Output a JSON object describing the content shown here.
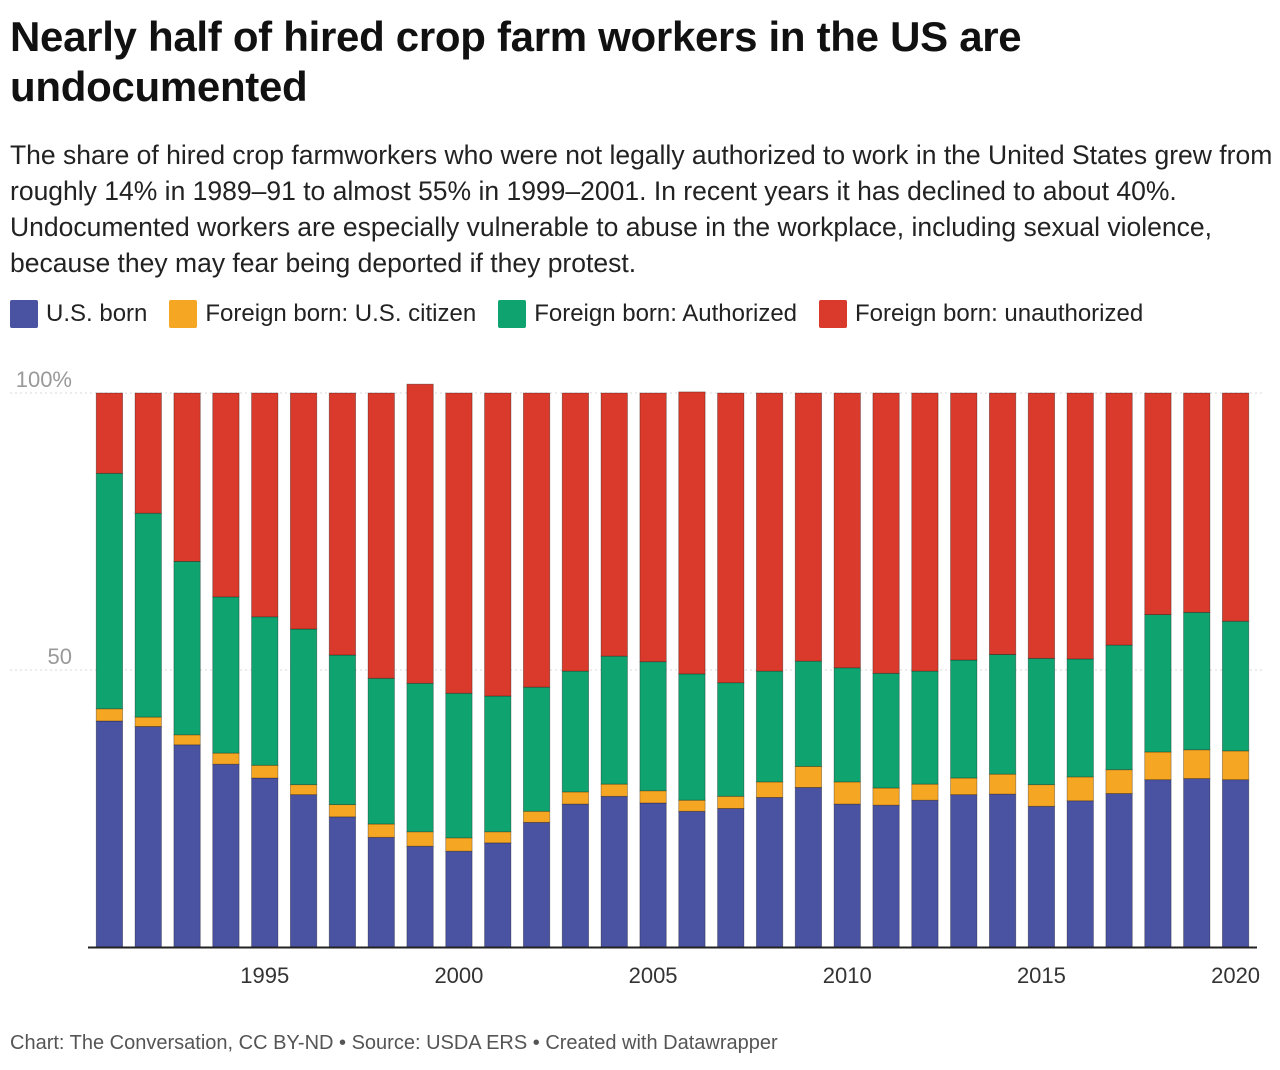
{
  "title": "Nearly half of hired crop farm workers in the US are undocumented",
  "subtitle": "The share of hired crop farmworkers who were not legally authorized to work in the United States grew from roughly 14% in 1989–91 to almost 55% in 1999–2001. In recent years it has declined to about 40%. Undocumented workers are especially vulnerable to abuse in the workplace, including sexual violence, because they may fear being deported if they protest.",
  "footer": "Chart: The Conversation, CC BY-ND • Source: USDA ERS • Created with Datawrapper",
  "colors": {
    "us_born": "#4a52a2",
    "fb_citizen": "#f5a623",
    "fb_authorized": "#0fa370",
    "fb_unauthorized": "#d93a2b"
  },
  "chart_data": {
    "type": "bar",
    "stacked": true,
    "title": "Nearly half of hired crop farm workers in the US are undocumented",
    "x": [
      1991,
      1992,
      1993,
      1994,
      1995,
      1996,
      1997,
      1998,
      1999,
      2000,
      2001,
      2002,
      2003,
      2004,
      2005,
      2006,
      2007,
      2008,
      2009,
      2010,
      2011,
      2012,
      2013,
      2014,
      2015,
      2016,
      2017,
      2018,
      2019,
      2020
    ],
    "x_tick_labels": [
      "1995",
      "2000",
      "2005",
      "2010",
      "2015",
      "2020"
    ],
    "x_ticks": [
      1995,
      2000,
      2005,
      2010,
      2015,
      2020
    ],
    "y_tick_labels": [
      "100%",
      "50"
    ],
    "y_ticks": [
      100,
      50
    ],
    "ylim": [
      0,
      100
    ],
    "grid": true,
    "legend_position": "top",
    "series": [
      {
        "name": "U.S. born",
        "color_key": "us_born",
        "values": [
          40.8,
          39.8,
          36.5,
          33.0,
          30.5,
          27.5,
          23.5,
          19.8,
          18.2,
          17.3,
          18.8,
          22.5,
          25.8,
          27.2,
          26.0,
          24.5,
          25.0,
          27.0,
          28.8,
          25.8,
          25.6,
          26.5,
          27.5,
          27.6,
          25.4,
          26.4,
          27.7,
          30.2,
          30.4,
          30.2
        ]
      },
      {
        "name": "Foreign born: U.S. citizen",
        "color_key": "fb_citizen",
        "values": [
          2.2,
          1.7,
          1.8,
          2.0,
          2.3,
          1.8,
          2.2,
          2.4,
          2.6,
          2.4,
          2.0,
          2.0,
          2.2,
          2.2,
          2.2,
          2.0,
          2.2,
          2.8,
          3.8,
          4.0,
          3.1,
          2.9,
          3.0,
          3.6,
          3.9,
          4.3,
          4.3,
          5.0,
          5.2,
          5.2
        ]
      },
      {
        "name": "Foreign born: Authorized",
        "color_key": "fb_authorized",
        "values": [
          42.5,
          36.8,
          31.3,
          28.2,
          26.8,
          28.1,
          27.0,
          26.3,
          26.8,
          26.1,
          24.5,
          22.4,
          21.8,
          23.1,
          23.3,
          22.8,
          20.5,
          20.0,
          19.0,
          20.6,
          20.7,
          20.4,
          21.3,
          21.6,
          22.8,
          21.3,
          22.5,
          24.8,
          24.8,
          23.4
        ]
      },
      {
        "name": "Foreign born: unauthorized",
        "color_key": "fb_unauthorized",
        "values": [
          14.5,
          21.7,
          30.4,
          36.8,
          40.4,
          42.6,
          47.3,
          51.5,
          54.0,
          54.2,
          54.7,
          53.1,
          50.2,
          47.5,
          48.5,
          50.9,
          52.3,
          50.2,
          48.4,
          49.6,
          50.6,
          50.2,
          48.2,
          47.2,
          47.9,
          48.0,
          45.5,
          40.0,
          39.6,
          41.2
        ]
      }
    ]
  }
}
